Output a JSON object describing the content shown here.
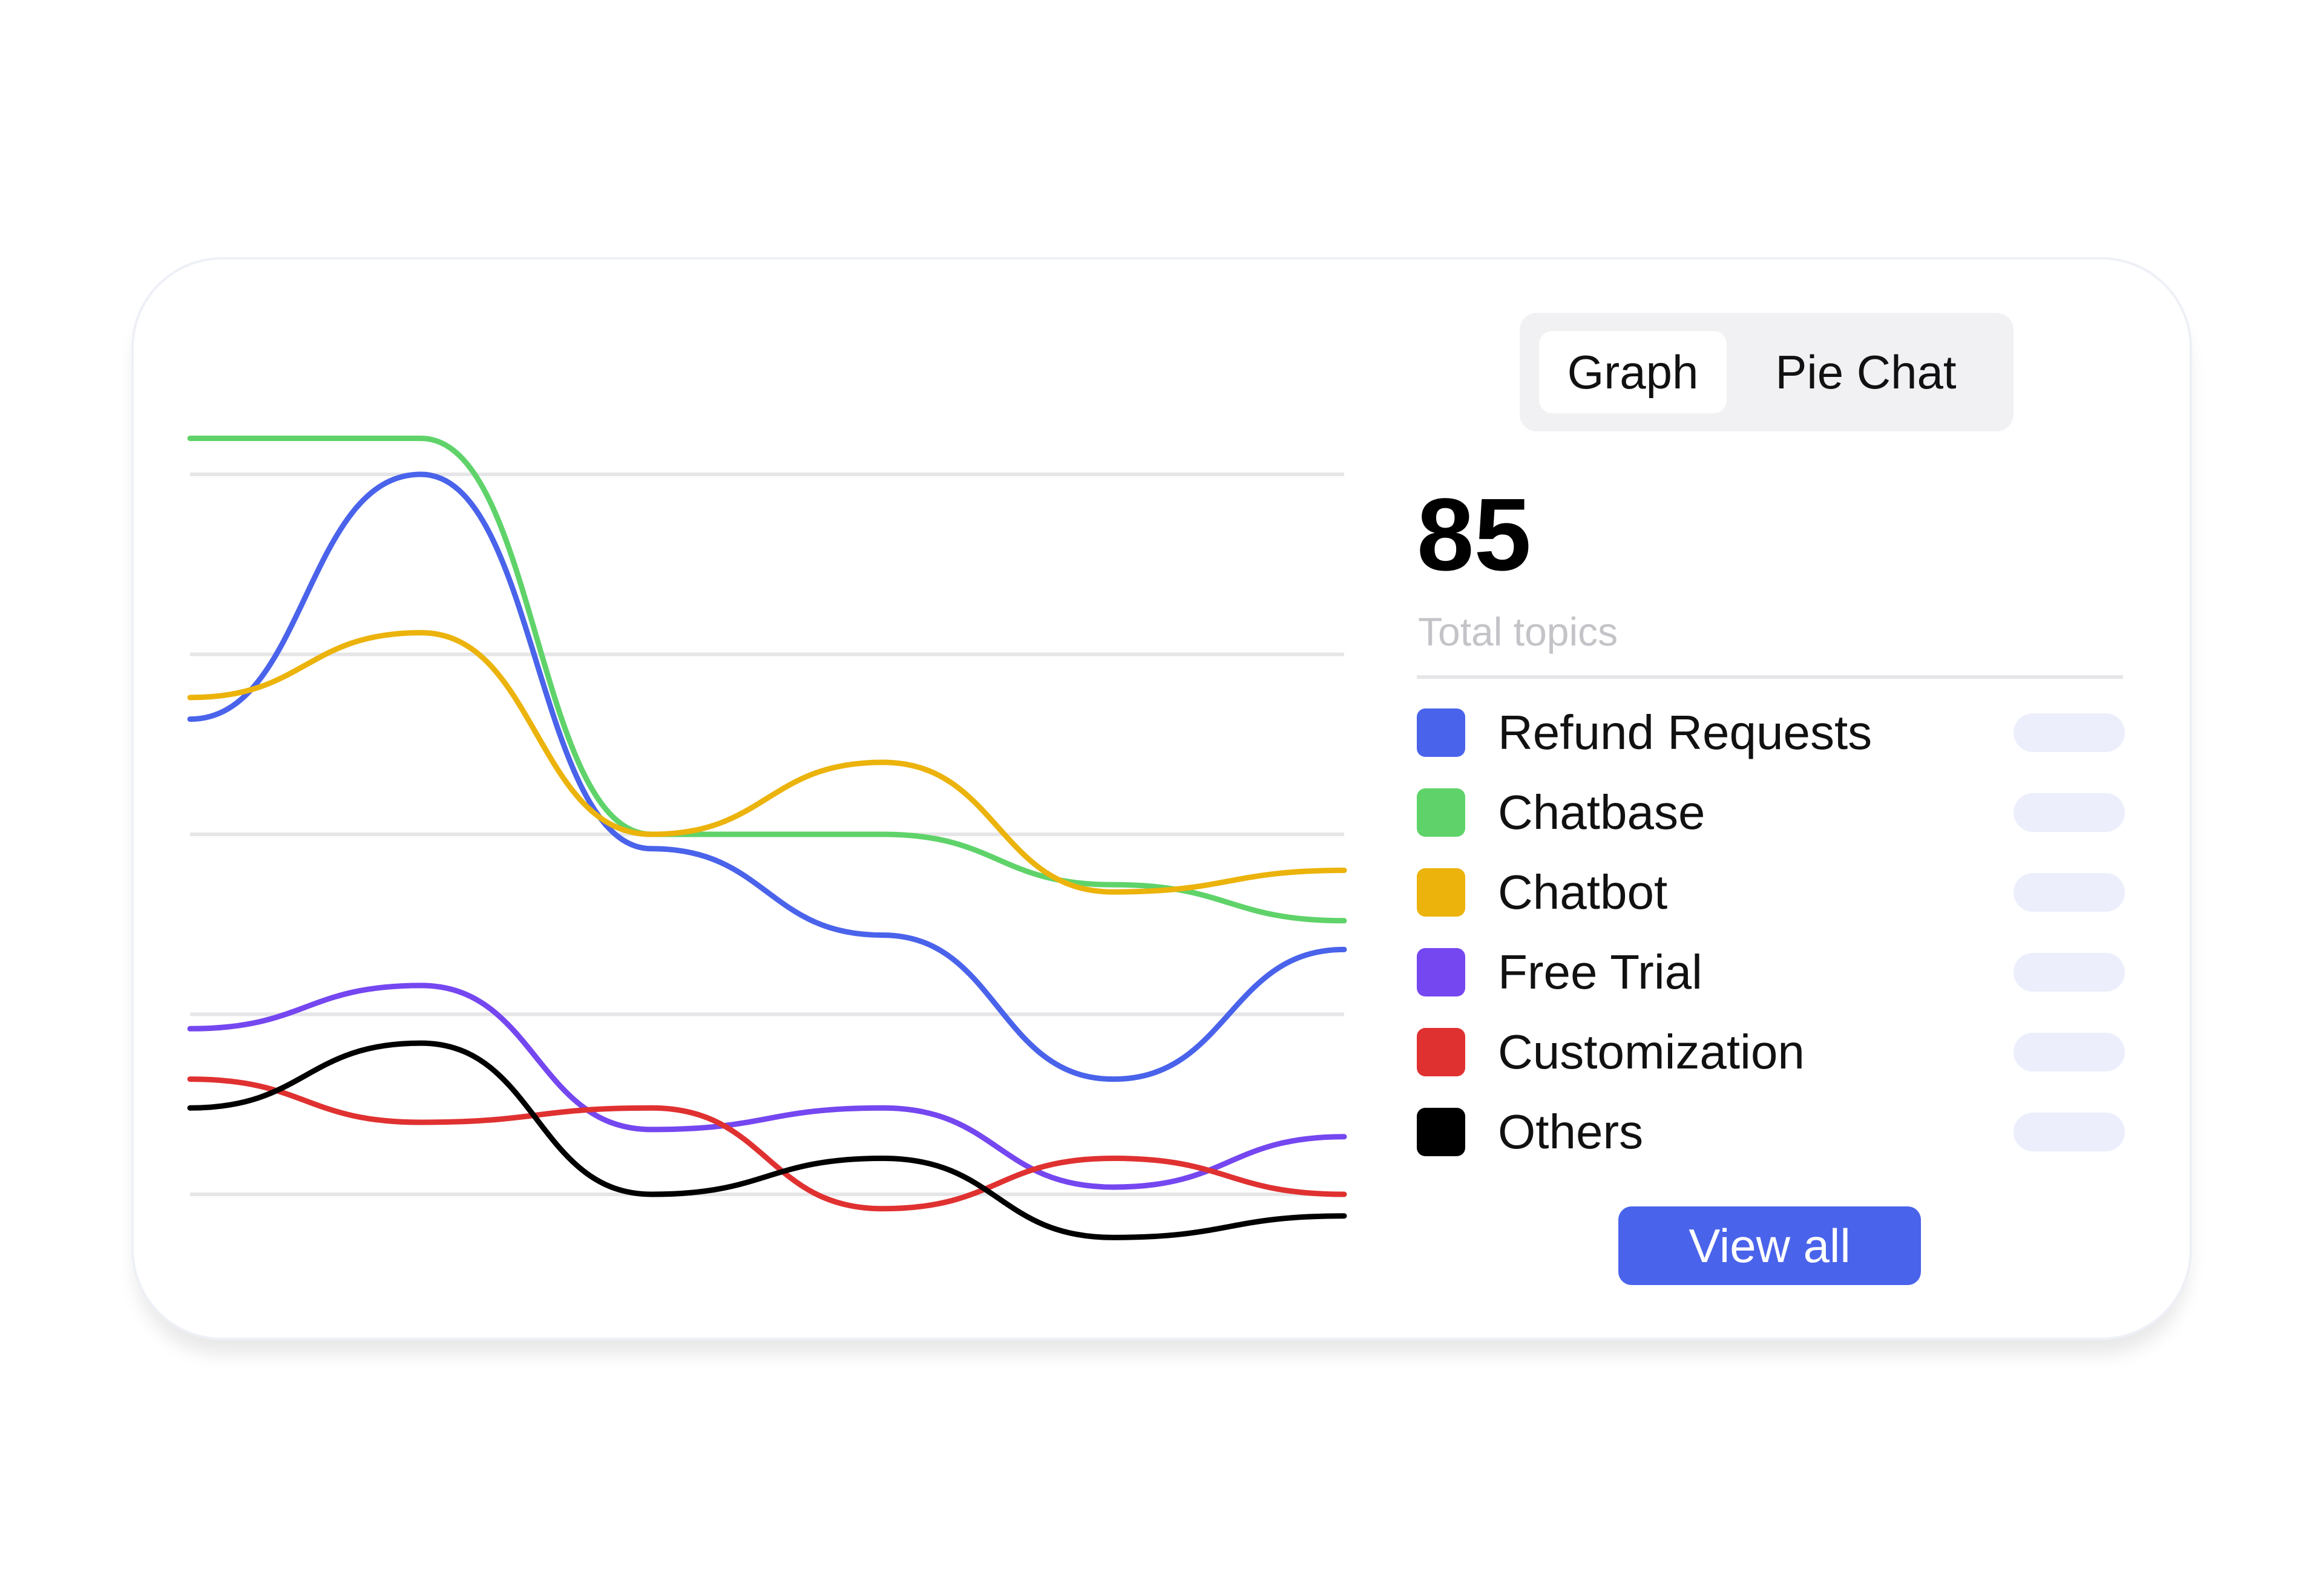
{
  "tabs": [
    {
      "label": "Graph",
      "selected": true
    },
    {
      "label": "Pie Chat",
      "selected": false
    }
  ],
  "summary": {
    "total_value": "85",
    "total_label": "Total topics"
  },
  "legend": [
    {
      "label": "Refund Requests",
      "color": "#4a63eb"
    },
    {
      "label": "Chatbase",
      "color": "#5fd36a"
    },
    {
      "label": "Chatbot",
      "color": "#ebb30b"
    },
    {
      "label": "Free Trial",
      "color": "#7547f0"
    },
    {
      "label": "Customization",
      "color": "#e03131"
    },
    {
      "label": "Others",
      "color": "#000000"
    }
  ],
  "actions": {
    "view_all_label": "View all"
  },
  "chart_data": {
    "type": "line",
    "x": [
      0,
      1,
      2,
      3,
      4,
      5
    ],
    "ylim": [
      0,
      100
    ],
    "grid": true,
    "legend_placement": "right",
    "series": [
      {
        "name": "Refund Requests",
        "color": "#4a63eb",
        "values": [
          66,
          100,
          48,
          36,
          16,
          34
        ]
      },
      {
        "name": "Chatbase",
        "color": "#5fd36a",
        "values": [
          105,
          105,
          50,
          50,
          43,
          38
        ]
      },
      {
        "name": "Chatbot",
        "color": "#ebb30b",
        "values": [
          69,
          78,
          50,
          60,
          42,
          45
        ]
      },
      {
        "name": "Free Trial",
        "color": "#7547f0",
        "values": [
          23,
          29,
          9,
          12,
          1,
          8
        ]
      },
      {
        "name": "Customization",
        "color": "#e03131",
        "values": [
          16,
          10,
          12,
          -2,
          5,
          0
        ]
      },
      {
        "name": "Others",
        "color": "#000000",
        "values": [
          12,
          21,
          0,
          5,
          -6,
          -3
        ]
      }
    ]
  }
}
